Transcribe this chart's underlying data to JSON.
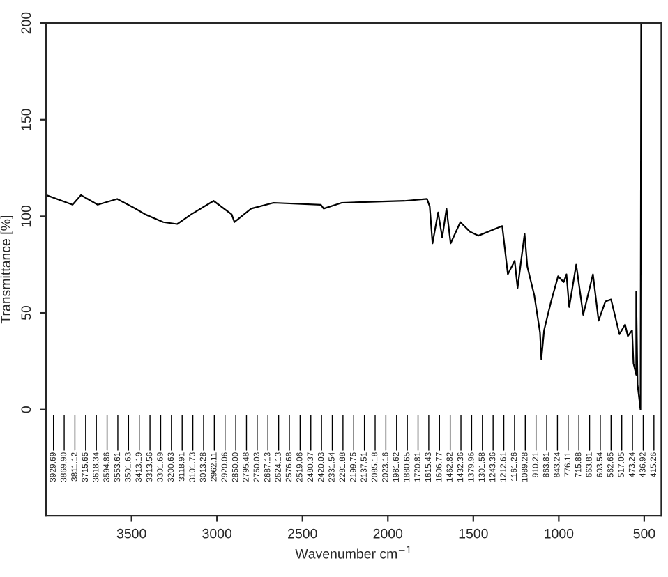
{
  "chart_data": {
    "type": "line",
    "xlabel": "Wavenumber cm$^{−1}$",
    "ylabel": "Transmittance [%]",
    "xlim": [
      4000,
      400
    ],
    "xticks": [
      3500,
      3000,
      2500,
      2000,
      1500,
      1000,
      500
    ],
    "ylim": [
      -55,
      200
    ],
    "yticks": [
      0,
      50,
      100,
      150,
      200
    ],
    "grid": false,
    "legend": false,
    "marker": "none",
    "line_style": "solid",
    "series": [
      {
        "color": "#000000",
        "x": [
          4000,
          3845,
          3796,
          3698,
          3584,
          3478,
          3420,
          3314,
          3233,
          3151,
          3020,
          2914,
          2898,
          2800,
          2669,
          2392,
          2376,
          2270,
          1902,
          1771,
          1755,
          1739,
          1706,
          1682,
          1657,
          1633,
          1576,
          1519,
          1470,
          1331,
          1298,
          1258,
          1241,
          1200,
          1184,
          1143,
          1110,
          1102,
          1086,
          1045,
          1004,
          971,
          955,
          939,
          898,
          857,
          800,
          767,
          727,
          694,
          645,
          612,
          596,
          571,
          563,
          547,
          547,
          539,
          522,
          518
        ],
        "values": [
          111,
          106,
          111,
          106,
          109,
          104,
          101,
          97,
          96,
          101,
          108,
          101,
          97,
          104,
          107,
          106,
          104,
          107,
          108,
          109,
          105,
          86,
          102,
          89,
          104,
          86,
          97,
          92,
          90,
          95,
          70,
          77,
          63,
          91,
          74,
          59,
          40,
          26,
          41,
          56,
          69,
          66,
          70,
          53,
          75,
          49,
          70,
          46,
          56,
          57,
          39,
          44,
          38,
          41,
          24,
          18,
          61,
          13,
          0,
          200
        ]
      }
    ],
    "annotations": [
      "3929.69",
      "3869.90",
      "3811.12",
      "3715.65",
      "3618.34",
      "3594.86",
      "3553.61",
      "3501.63",
      "3413.19",
      "3313.56",
      "3301.69",
      "3200.63",
      "3118.91",
      "3101.73",
      "3013.28",
      "2962.11",
      "2920.06",
      "2850.00",
      "2795.48",
      "2750.03",
      "2687.13",
      "2624.13",
      "2576.68",
      "2519.06",
      "2480.37",
      "2420.03",
      "2331.54",
      "2281.88",
      "2199.75",
      "2137.51",
      "2085.18",
      "2023.16",
      "1981.62",
      "1880.65",
      "1720.81",
      "1615.43",
      "1606.77",
      "1462.82",
      "1432.36",
      "1379.96",
      "1301.58",
      "1243.36",
      "1212.61",
      "1161.26",
      "1089.28",
      "910.21",
      "863.81",
      "843.24",
      "776.11",
      "715.88",
      "663.81",
      "603.54",
      "562.65",
      "517.05",
      "473.24",
      "436.92",
      "415.26"
    ]
  }
}
